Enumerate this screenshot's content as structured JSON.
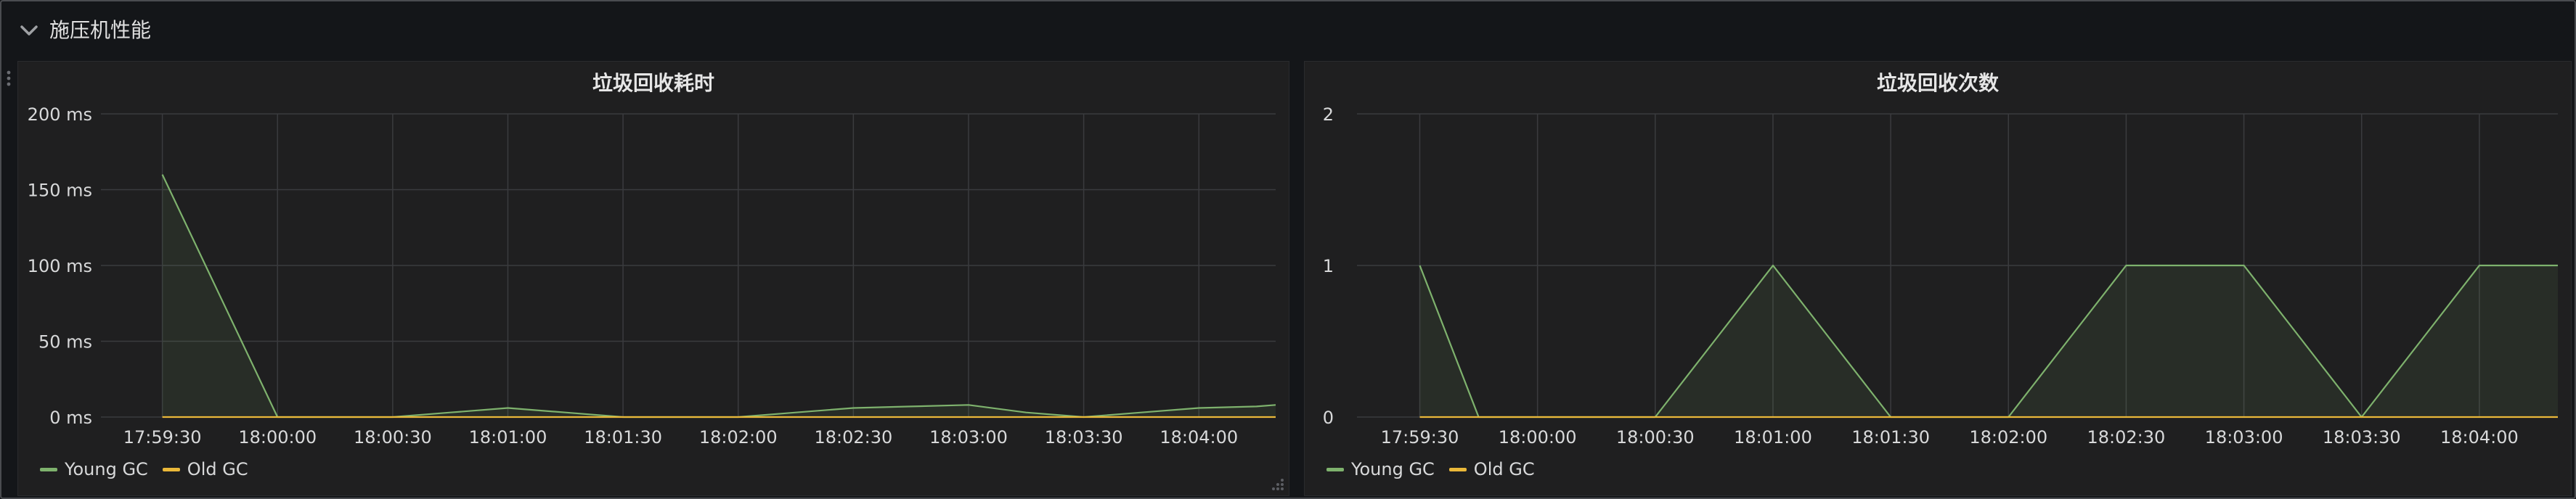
{
  "row": {
    "title": "施压机性能",
    "icon": "chevron-down-icon"
  },
  "colors": {
    "young_gc": "#7eb26d",
    "old_gc": "#eab839",
    "grid": "#3a3b3e",
    "background": "#1f1f20"
  },
  "panels": [
    {
      "title": "垃圾回收耗时",
      "legend": [
        "Young GC",
        "Old GC"
      ]
    },
    {
      "title": "垃圾回收次数",
      "legend": [
        "Young GC",
        "Old GC"
      ]
    }
  ],
  "chart_data": [
    {
      "type": "line",
      "title": "垃圾回收耗时",
      "x_ticks": [
        "17:59:30",
        "18:00:00",
        "18:00:30",
        "18:01:00",
        "18:01:30",
        "18:02:00",
        "18:02:30",
        "18:03:00",
        "18:03:30",
        "18:04:00"
      ],
      "y_ticks": [
        "0 ms",
        "50 ms",
        "100 ms",
        "150 ms",
        "200 ms"
      ],
      "ylim": [
        0,
        200
      ],
      "x": [
        "17:59:30",
        "17:59:45",
        "18:00:00",
        "18:00:15",
        "18:00:30",
        "18:00:45",
        "18:01:00",
        "18:01:15",
        "18:01:30",
        "18:01:45",
        "18:02:00",
        "18:02:15",
        "18:02:30",
        "18:02:45",
        "18:03:00",
        "18:03:15",
        "18:03:30",
        "18:03:45",
        "18:04:00",
        "18:04:15",
        "18:04:20"
      ],
      "series": [
        {
          "name": "Young GC",
          "values": [
            160,
            80,
            0,
            0,
            0,
            3,
            6,
            3,
            0,
            0,
            0,
            3,
            6,
            7,
            8,
            3,
            0,
            3,
            6,
            7,
            8
          ]
        },
        {
          "name": "Old GC",
          "values": [
            0,
            0,
            0,
            0,
            0,
            0,
            0,
            0,
            0,
            0,
            0,
            0,
            0,
            0,
            0,
            0,
            0,
            0,
            0,
            0,
            0
          ]
        }
      ],
      "grid": true,
      "legend_position": "bottom-left"
    },
    {
      "type": "line",
      "title": "垃圾回收次数",
      "x_ticks": [
        "17:59:30",
        "18:00:00",
        "18:00:30",
        "18:01:00",
        "18:01:30",
        "18:02:00",
        "18:02:30",
        "18:03:00",
        "18:03:30",
        "18:04:00"
      ],
      "y_ticks": [
        "0",
        "1",
        "2"
      ],
      "ylim": [
        0,
        2
      ],
      "x": [
        "17:59:30",
        "17:59:45",
        "18:00:00",
        "18:00:15",
        "18:00:30",
        "18:00:45",
        "18:01:00",
        "18:01:15",
        "18:01:30",
        "18:01:45",
        "18:02:00",
        "18:02:15",
        "18:02:30",
        "18:02:45",
        "18:03:00",
        "18:03:15",
        "18:03:30",
        "18:03:45",
        "18:04:00",
        "18:04:15",
        "18:04:20"
      ],
      "series": [
        {
          "name": "Young GC",
          "values": [
            1,
            0,
            0,
            0,
            0,
            0.5,
            1,
            0.5,
            0,
            0,
            0,
            0.5,
            1,
            1,
            1,
            0.5,
            0,
            0.5,
            1,
            1,
            1
          ]
        },
        {
          "name": "Old GC",
          "values": [
            0,
            0,
            0,
            0,
            0,
            0,
            0,
            0,
            0,
            0,
            0,
            0,
            0,
            0,
            0,
            0,
            0,
            0,
            0,
            0,
            0
          ]
        }
      ],
      "grid": true,
      "legend_position": "bottom-left"
    }
  ]
}
